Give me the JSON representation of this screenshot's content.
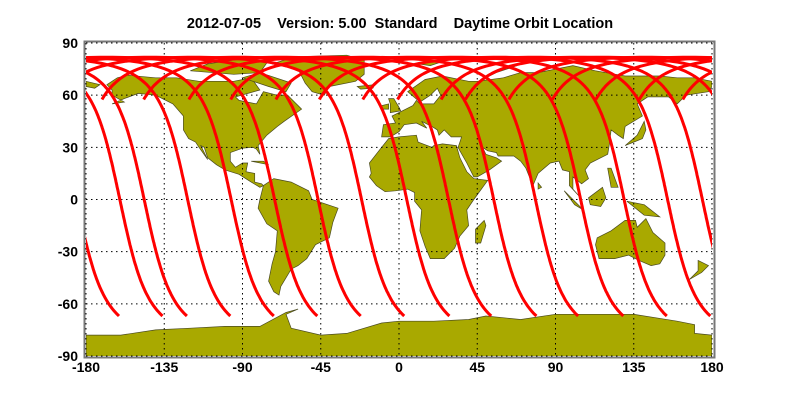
{
  "title": "2012-07-05    Version: 5.00  Standard    Daytime Orbit Location",
  "map": {
    "projection": "equirectangular",
    "lon_range": [
      -180,
      180
    ],
    "lat_range": [
      -90,
      90
    ],
    "x_ticks": [
      "-180",
      "-135",
      "-90",
      "-45",
      "0",
      "45",
      "90",
      "135",
      "180"
    ],
    "y_ticks": [
      "90",
      "60",
      "30",
      "0",
      "-30",
      "-60",
      "-90"
    ],
    "grid": "dotted",
    "land_color": "#a9a900",
    "coast_color": "#4a4a20",
    "track_color": "#ff0000",
    "orbit_tracks": {
      "southern_end_latitude": -67,
      "southern_end_longitudes": [
        -161,
        -136,
        -122,
        -97,
        -72,
        -47,
        -22,
        3,
        29,
        53,
        79,
        103,
        129,
        154,
        179
      ]
    }
  }
}
